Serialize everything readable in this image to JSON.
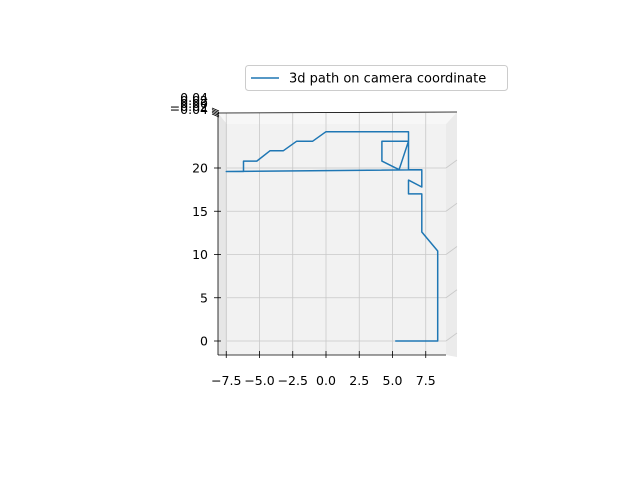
{
  "chart_data": {
    "type": "line",
    "projection": "3d",
    "title": "",
    "xlabel": "",
    "ylabel": "",
    "zlabel": "",
    "legend": {
      "placement": "top-right",
      "entries": [
        "3d path on camera coordinate"
      ]
    },
    "grid": true,
    "series": [
      {
        "name": "3d path on camera coordinate",
        "color": "#1f77b4",
        "x": [
          5.2,
          8.4,
          8.4,
          7.2,
          7.2,
          6.2,
          6.2,
          7.2,
          7.2,
          6.2,
          6.2,
          5.5,
          4.2,
          4.2,
          6.2,
          6.2,
          0.0,
          -1.0,
          -2.2,
          -3.2,
          -4.2,
          -5.2,
          -6.2,
          -6.2,
          -7.5,
          7.2
        ],
        "y": [
          0.0,
          0.0,
          10.4,
          12.6,
          17.0,
          17.0,
          18.6,
          17.8,
          19.8,
          19.8,
          23.1,
          19.8,
          20.8,
          23.1,
          23.1,
          24.2,
          24.2,
          23.1,
          23.1,
          22.0,
          22.0,
          20.8,
          20.8,
          19.6,
          19.6,
          19.8
        ],
        "z": [
          0,
          0,
          0,
          0,
          0,
          0,
          0,
          0,
          0,
          0,
          0,
          0,
          0,
          0,
          0,
          0,
          0,
          0,
          0,
          0,
          0,
          0,
          0,
          0,
          0,
          0
        ]
      }
    ],
    "x_ticks": [
      "−7.5",
      "−5.0",
      "−2.5",
      "0.0",
      "2.5",
      "5.0",
      "7.5"
    ],
    "x_tick_values": [
      -7.5,
      -5.0,
      -2.5,
      0.0,
      2.5,
      5.0,
      7.5
    ],
    "y_ticks": [
      "0",
      "5",
      "10",
      "15",
      "20"
    ],
    "y_tick_values": [
      0,
      5,
      10,
      15,
      20
    ],
    "z_ticks": [
      "0.04",
      "0.02",
      "0.00",
      "−0.02",
      "−0.04"
    ],
    "z_tick_values": [
      0.04,
      0.02,
      0.0,
      -0.02,
      -0.04
    ]
  }
}
